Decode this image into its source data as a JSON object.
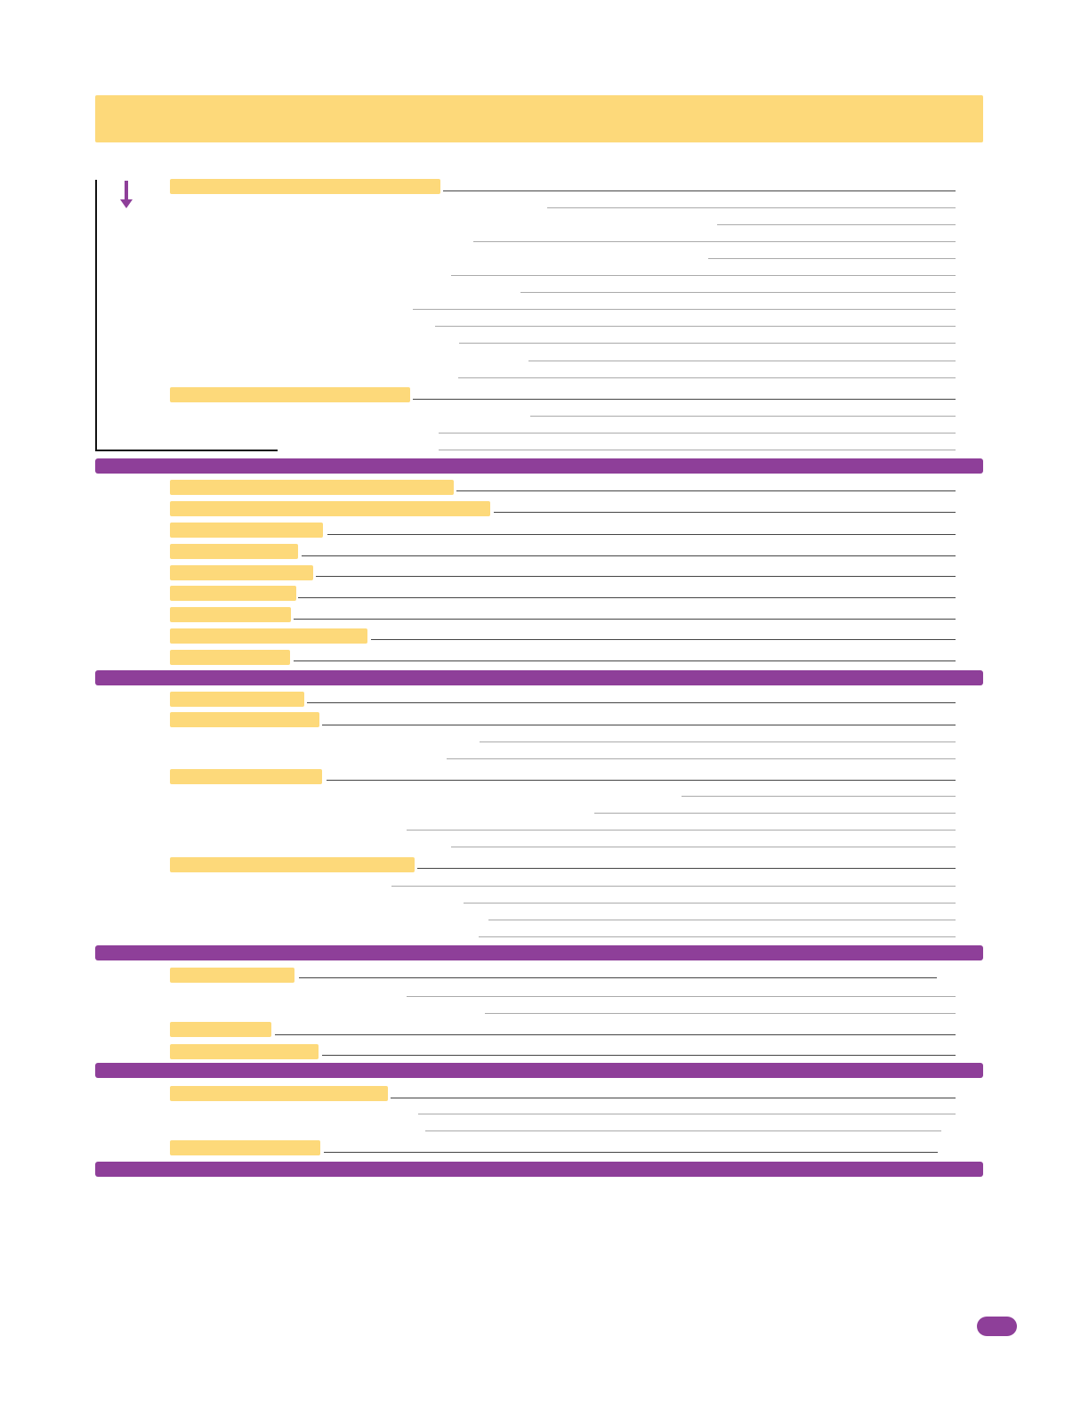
{
  "header": {
    "title": ""
  },
  "sections": [
    {
      "id": "s1",
      "title": ""
    },
    {
      "id": "s2",
      "title": ""
    },
    {
      "id": "s3",
      "title": ""
    },
    {
      "id": "s4",
      "title": ""
    },
    {
      "id": "s5",
      "title": ""
    },
    {
      "id": "s6",
      "title": ""
    }
  ],
  "page": {
    "number": ""
  },
  "colors": {
    "accent": "#8e3f99",
    "highlight": "#fdd97a"
  },
  "icons": {
    "arrow": "arrow-down-icon"
  }
}
